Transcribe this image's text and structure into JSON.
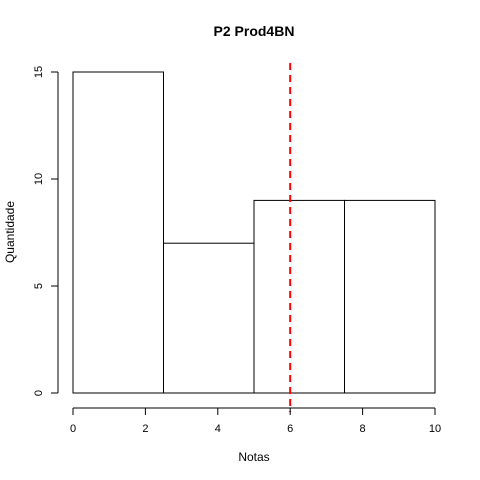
{
  "chart_data": {
    "type": "bar",
    "title": "P2 Prod4BN",
    "xlabel": "Notas",
    "ylabel": "Quantidade",
    "bins": [
      {
        "start": 0,
        "end": 2.5,
        "count": 15
      },
      {
        "start": 2.5,
        "end": 5,
        "count": 7
      },
      {
        "start": 5,
        "end": 7.5,
        "count": 9
      },
      {
        "start": 7.5,
        "end": 10,
        "count": 9
      }
    ],
    "xlim": [
      0,
      10
    ],
    "ylim": [
      0,
      15
    ],
    "xticks": [
      "0",
      "2",
      "4",
      "6",
      "8",
      "10"
    ],
    "yticks": [
      "0",
      "5",
      "10",
      "15"
    ],
    "reference_line": {
      "x": 6,
      "style": "dashed",
      "color": "#ff0000"
    },
    "grid": false,
    "legend": "none"
  }
}
